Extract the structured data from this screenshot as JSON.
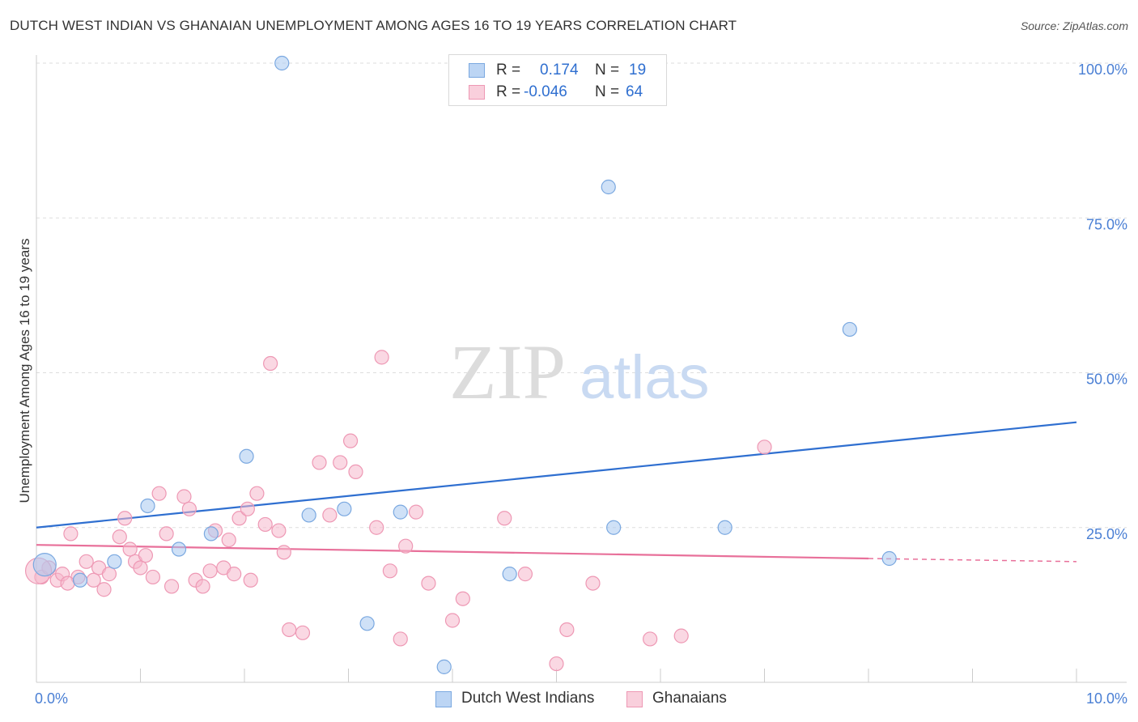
{
  "title": "DUTCH WEST INDIAN VS GHANAIAN UNEMPLOYMENT AMONG AGES 16 TO 19 YEARS CORRELATION CHART",
  "source": "Source: ZipAtlas.com",
  "watermark": {
    "zip": "ZIP",
    "atlas": "atlas"
  },
  "legend": {
    "rows": [
      {
        "r_label": "R =",
        "r_value": "0.174",
        "n_label": "N =",
        "n_value": "19",
        "color": "#a8c8f0"
      },
      {
        "r_label": "R =",
        "r_value": "-0.046",
        "n_label": "N =",
        "n_value": "64",
        "color": "#f5b8cc"
      }
    ]
  },
  "bottom_legend": [
    {
      "label": "Dutch West Indians",
      "color": "#a8c8f0"
    },
    {
      "label": "Ghanaians",
      "color": "#f5b8cc"
    }
  ],
  "colors": {
    "blue_fill": "#a8c8f0",
    "blue_stroke": "#7aa8e0",
    "blue_line": "#2f6fd0",
    "pink_fill": "#f5b8cc",
    "pink_stroke": "#ee98b4",
    "pink_line": "#e8709a",
    "axis_text": "#4a7fd4",
    "grid": "#dddddd"
  },
  "chart_data": {
    "type": "scatter",
    "title": "DUTCH WEST INDIAN VS GHANAIAN UNEMPLOYMENT AMONG AGES 16 TO 19 YEARS CORRELATION CHART",
    "xlabel": "",
    "ylabel": "Unemployment Among Ages 16 to 19 years",
    "xlim": [
      0,
      10
    ],
    "ylim": [
      0,
      100
    ],
    "x_tick_labels": [
      {
        "value": 0,
        "label": "0.0%"
      },
      {
        "value": 10,
        "label": "10.0%"
      }
    ],
    "y_tick_labels": [
      {
        "value": 25,
        "label": "25.0%"
      },
      {
        "value": 50,
        "label": "50.0%"
      },
      {
        "value": 75,
        "label": "75.0%"
      },
      {
        "value": 100,
        "label": "100.0%"
      }
    ],
    "series": [
      {
        "name": "Dutch West Indians",
        "points": [
          [
            0.08,
            19.0
          ],
          [
            0.42,
            16.5
          ],
          [
            0.75,
            19.5
          ],
          [
            1.07,
            28.5
          ],
          [
            1.37,
            21.5
          ],
          [
            1.68,
            24.0
          ],
          [
            2.02,
            36.5
          ],
          [
            2.36,
            100.0
          ],
          [
            2.62,
            27.0
          ],
          [
            2.96,
            28.0
          ],
          [
            3.18,
            9.5
          ],
          [
            3.5,
            27.5
          ],
          [
            3.92,
            2.5
          ],
          [
            4.55,
            17.5
          ],
          [
            5.5,
            80.0
          ],
          [
            5.55,
            25.0
          ],
          [
            6.62,
            25.0
          ],
          [
            7.82,
            57.0
          ],
          [
            8.2,
            20.0
          ]
        ],
        "trend": {
          "x": [
            0,
            10
          ],
          "y": [
            25.0,
            42.0
          ]
        }
      },
      {
        "name": "Ghanaians",
        "points": [
          [
            0.05,
            17.0
          ],
          [
            0.12,
            18.5
          ],
          [
            0.2,
            16.5
          ],
          [
            0.25,
            17.5
          ],
          [
            0.33,
            24.0
          ],
          [
            0.4,
            17.0
          ],
          [
            0.48,
            19.5
          ],
          [
            0.55,
            16.5
          ],
          [
            0.6,
            18.5
          ],
          [
            0.65,
            15.0
          ],
          [
            0.7,
            17.5
          ],
          [
            0.8,
            23.5
          ],
          [
            0.85,
            26.5
          ],
          [
            0.9,
            21.5
          ],
          [
            0.95,
            19.5
          ],
          [
            1.0,
            18.5
          ],
          [
            1.05,
            20.5
          ],
          [
            1.12,
            17.0
          ],
          [
            1.18,
            30.5
          ],
          [
            1.25,
            24.0
          ],
          [
            1.3,
            15.5
          ],
          [
            1.42,
            30.0
          ],
          [
            1.47,
            28.0
          ],
          [
            1.53,
            16.5
          ],
          [
            1.6,
            15.5
          ],
          [
            1.67,
            18.0
          ],
          [
            1.72,
            24.5
          ],
          [
            1.8,
            18.5
          ],
          [
            1.85,
            23.0
          ],
          [
            1.9,
            17.5
          ],
          [
            1.95,
            26.5
          ],
          [
            2.03,
            28.0
          ],
          [
            2.06,
            16.5
          ],
          [
            2.12,
            30.5
          ],
          [
            2.2,
            25.5
          ],
          [
            2.25,
            51.5
          ],
          [
            2.33,
            24.5
          ],
          [
            2.38,
            21.0
          ],
          [
            2.43,
            8.5
          ],
          [
            2.56,
            8.0
          ],
          [
            2.72,
            35.5
          ],
          [
            2.82,
            27.0
          ],
          [
            2.92,
            35.5
          ],
          [
            3.02,
            39.0
          ],
          [
            3.07,
            34.0
          ],
          [
            3.27,
            25.0
          ],
          [
            3.32,
            52.5
          ],
          [
            3.4,
            18.0
          ],
          [
            3.5,
            7.0
          ],
          [
            3.55,
            22.0
          ],
          [
            3.65,
            27.5
          ],
          [
            3.77,
            16.0
          ],
          [
            4.0,
            10.0
          ],
          [
            4.1,
            13.5
          ],
          [
            4.5,
            26.5
          ],
          [
            4.7,
            17.5
          ],
          [
            5.0,
            3.0
          ],
          [
            5.1,
            8.5
          ],
          [
            5.35,
            16.0
          ],
          [
            5.9,
            7.0
          ],
          [
            6.2,
            7.5
          ],
          [
            7.0,
            38.0
          ],
          [
            0.02,
            18.0
          ],
          [
            0.3,
            16.0
          ]
        ],
        "trend": {
          "x": [
            0,
            8.0
          ],
          "y": [
            22.2,
            20.0
          ]
        },
        "trend_dashed": {
          "x": [
            8.0,
            10
          ],
          "y": [
            20.0,
            19.5
          ]
        }
      }
    ]
  }
}
